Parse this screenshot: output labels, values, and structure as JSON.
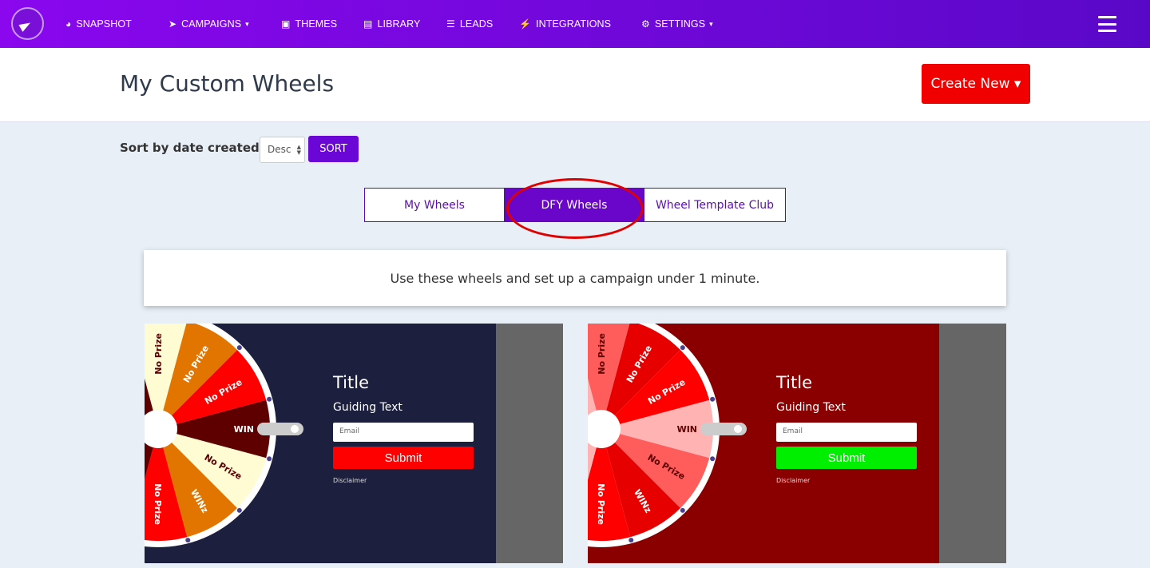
{
  "nav": {
    "items": [
      {
        "label": "SNAPSHOT",
        "icon": "dashboard-icon",
        "glyph": "◕"
      },
      {
        "label": "CAMPAIGNS",
        "icon": "paper-plane-icon",
        "glyph": "➤",
        "caret": "▾"
      },
      {
        "label": "THEMES",
        "icon": "image-icon",
        "glyph": "▣"
      },
      {
        "label": "LIBRARY",
        "icon": "book-icon",
        "glyph": "▤"
      },
      {
        "label": "LEADS",
        "icon": "list-icon",
        "glyph": "☰"
      },
      {
        "label": "INTEGRATIONS",
        "icon": "plug-icon",
        "glyph": "⚡"
      },
      {
        "label": "SETTINGS",
        "icon": "gears-icon",
        "glyph": "⚙",
        "caret": "▾"
      }
    ]
  },
  "header": {
    "title": "My Custom Wheels",
    "create_label": "Create New ▾"
  },
  "sort": {
    "label": "Sort by date created",
    "value": "Desc",
    "button": "SORT"
  },
  "tabs": [
    {
      "label": "My Wheels",
      "active": false
    },
    {
      "label": "DFY Wheels",
      "active": true
    },
    {
      "label": "Wheel Template Club",
      "active": false
    }
  ],
  "info": "Use these wheels and set up a campaign under 1 minute.",
  "cards": [
    {
      "bg": "#1c1f3d",
      "segments": [
        {
          "label": "WIN",
          "color": "#5e0000",
          "text": "#fff"
        },
        {
          "label": "No Prize",
          "color": "#fffcd4",
          "text": "#5e0000"
        },
        {
          "label": "WINz",
          "color": "#e27500",
          "text": "#fff"
        },
        {
          "label": "No Prize",
          "color": "#fe0000",
          "text": "#fff"
        },
        {
          "label": "",
          "color": "#5e0000",
          "text": "#fff"
        },
        {
          "label": "",
          "color": "#fffcd4",
          "text": "#5e0000"
        },
        {
          "label": "",
          "color": "#e27500",
          "text": "#fff"
        },
        {
          "label": "",
          "color": "#fe0000",
          "text": "#fff"
        },
        {
          "label": "",
          "color": "#5e0000",
          "text": "#fff"
        },
        {
          "label": "No Prize",
          "color": "#fffcd4",
          "text": "#5e0000"
        },
        {
          "label": "No Prize",
          "color": "#e27500",
          "text": "#fff"
        },
        {
          "label": "No Prize",
          "color": "#fe0000",
          "text": "#fff"
        }
      ],
      "form": {
        "title": "Title",
        "guiding": "Guiding Text",
        "email_placeholder": "Email",
        "submit": "Submit",
        "submit_color": "#fe0000",
        "disclaimer": "Disclaimer"
      }
    },
    {
      "bg": "#8a0000",
      "segments": [
        {
          "label": "WIN",
          "color": "#ffb3b3",
          "text": "#5e0000"
        },
        {
          "label": "No Prize",
          "color": "#ff5c5c",
          "text": "#5e0000"
        },
        {
          "label": "WINz",
          "color": "#e60000",
          "text": "#fff"
        },
        {
          "label": "No Prize",
          "color": "#ff0000",
          "text": "#fff"
        },
        {
          "label": "",
          "color": "#ffb3b3",
          "text": "#5e0000"
        },
        {
          "label": "",
          "color": "#ff5c5c",
          "text": "#5e0000"
        },
        {
          "label": "",
          "color": "#e60000",
          "text": "#fff"
        },
        {
          "label": "",
          "color": "#ff0000",
          "text": "#fff"
        },
        {
          "label": "",
          "color": "#ffb3b3",
          "text": "#5e0000"
        },
        {
          "label": "No Prize",
          "color": "#ff5c5c",
          "text": "#5e0000"
        },
        {
          "label": "No Prize",
          "color": "#e60000",
          "text": "#fff"
        },
        {
          "label": "No Prize",
          "color": "#ff0000",
          "text": "#fff"
        }
      ],
      "form": {
        "title": "Title",
        "guiding": "Guiding Text",
        "email_placeholder": "Email",
        "submit": "Submit",
        "submit_color": "#00ee00",
        "disclaimer": "Disclaimer"
      }
    }
  ]
}
